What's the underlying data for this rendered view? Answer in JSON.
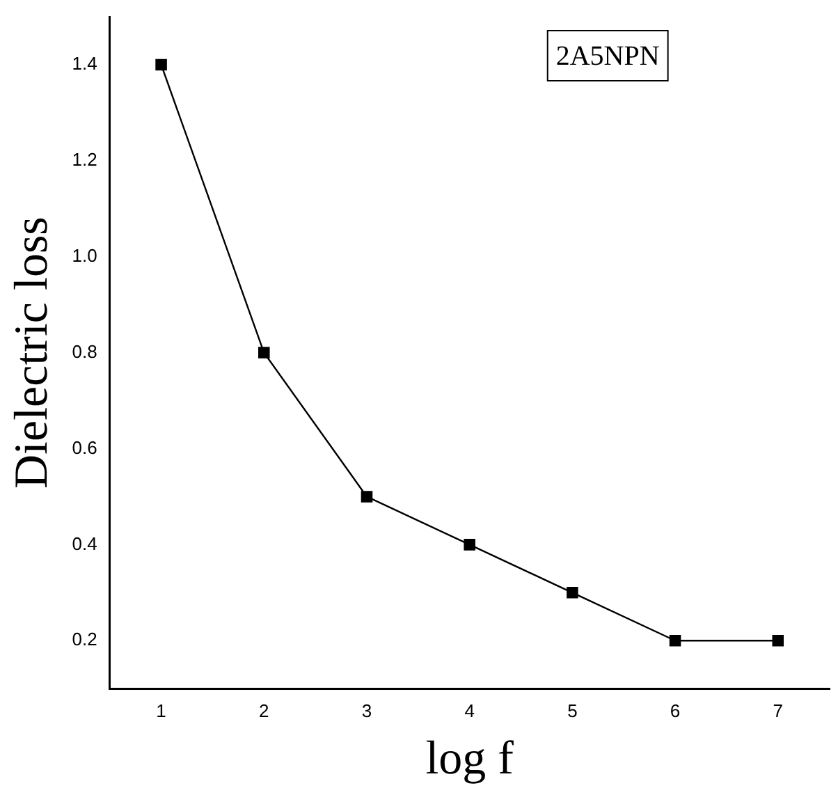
{
  "chart_data": {
    "type": "line",
    "xlabel": "log f",
    "ylabel": "Dielectric loss",
    "annotations": [
      "2A5NPN"
    ],
    "x": [
      1,
      2,
      3,
      4,
      5,
      6,
      7
    ],
    "values": [
      1.4,
      0.8,
      0.5,
      0.4,
      0.3,
      0.2,
      0.2
    ],
    "color": "#000000",
    "marker": "square",
    "line_style": "solid",
    "grid": false,
    "legend": false,
    "xlim": [
      0.5,
      7.5
    ],
    "xticks": [
      1,
      2,
      3,
      4,
      5,
      6,
      7
    ],
    "ylim": [
      0.1,
      1.5
    ],
    "yticks": [
      {
        "value": 0.2,
        "label": "0.2"
      },
      {
        "value": 0.4,
        "label": "0.4"
      },
      {
        "value": 0.6,
        "label": "0.6"
      },
      {
        "value": 0.8,
        "label": "0.8"
      },
      {
        "value": 1,
        "label": "1.0"
      },
      {
        "value": 1.2,
        "label": "1.2"
      },
      {
        "value": 1.4,
        "label": "1.4"
      }
    ]
  }
}
